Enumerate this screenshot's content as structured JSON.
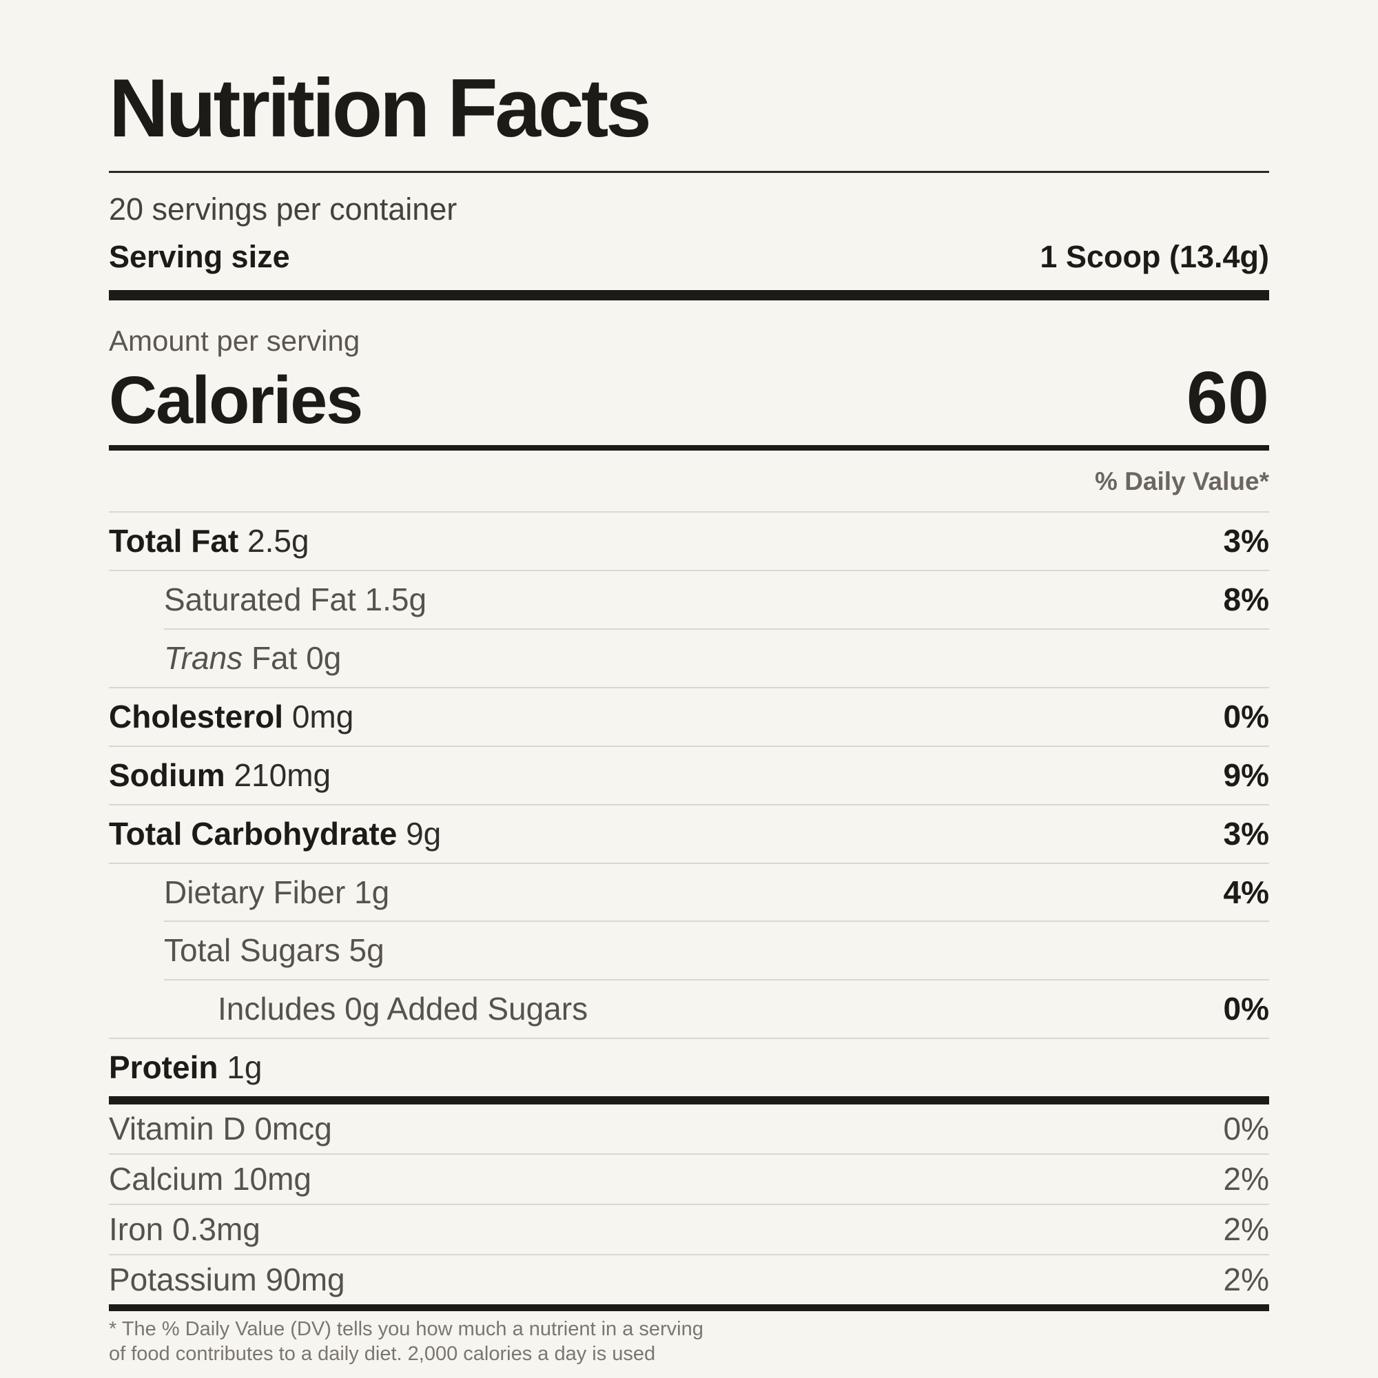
{
  "header": {
    "title": "Nutrition Facts",
    "servings_per_container": "20 servings per container",
    "serving_size_label": "Serving size",
    "serving_size_value": "1 Scoop (13.4g)"
  },
  "calories": {
    "amount_per_serving_label": "Amount per serving",
    "label": "Calories",
    "value": "60"
  },
  "daily_value_header": "% Daily Value*",
  "nutrients": [
    {
      "name": "Total Fat",
      "amount": "2.5g",
      "dv": "3%"
    },
    {
      "name": "Saturated Fat",
      "amount": "1.5g",
      "dv": "8%"
    },
    {
      "name_italic": "Trans",
      "name": "Fat",
      "amount": "0g",
      "dv": ""
    },
    {
      "name": "Cholesterol",
      "amount": "0mg",
      "dv": "0%"
    },
    {
      "name": "Sodium",
      "amount": "210mg",
      "dv": "9%"
    },
    {
      "name": "Total Carbohydrate",
      "amount": "9g",
      "dv": "3%"
    },
    {
      "name": "Dietary Fiber",
      "amount": "1g",
      "dv": "4%"
    },
    {
      "name": "Total Sugars",
      "amount": "5g",
      "dv": ""
    },
    {
      "name": "Includes 0g Added Sugars",
      "amount": "",
      "dv": "0%"
    },
    {
      "name": "Protein",
      "amount": "1g",
      "dv": ""
    }
  ],
  "micronutrients": [
    {
      "name": "Vitamin D",
      "amount": "0mcg",
      "dv": "0%"
    },
    {
      "name": "Calcium",
      "amount": "10mg",
      "dv": "2%"
    },
    {
      "name": "Iron",
      "amount": "0.3mg",
      "dv": "2%"
    },
    {
      "name": "Potassium",
      "amount": "90mg",
      "dv": "2%"
    }
  ],
  "footnote": {
    "line1": "* The % Daily Value (DV) tells you how much a nutrient in a serving",
    "line2": "of food contributes to a daily diet. 2,000 calories a day is used"
  },
  "colors": {
    "background": "#f7f5f0",
    "ink": "#1d1b18",
    "muted": "#56524c",
    "divider": "#dad7d1"
  }
}
